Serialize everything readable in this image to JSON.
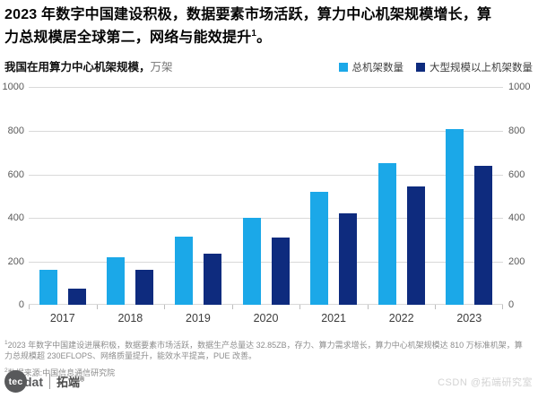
{
  "title": {
    "line1": "2023 年数字中国建设积极，数据要素市场活跃，算力中心机架规模增长，算",
    "line2": "力总规模居全球第二，网络与能效提升",
    "superscript": "1",
    "period": "。"
  },
  "subtitle": {
    "label": "我国在用算力中心机架规模，",
    "unit": "万架"
  },
  "legend": [
    {
      "label": "总机架数量",
      "color": "#1BA8E8"
    },
    {
      "label": "大型规模以上机架数量",
      "color": "#0E2B7E"
    }
  ],
  "chart_data": {
    "type": "bar",
    "title": "我国在用算力中心机架规模",
    "unit": "万架",
    "categories": [
      "2017",
      "2018",
      "2019",
      "2020",
      "2021",
      "2022",
      "2023"
    ],
    "series": [
      {
        "name": "总机架数量",
        "color": "#1BA8E8",
        "values": [
          160,
          220,
          315,
          400,
          520,
          650,
          810
        ]
      },
      {
        "name": "大型规模以上机架数量",
        "color": "#0E2B7E",
        "values": [
          75,
          160,
          235,
          310,
          420,
          545,
          640
        ]
      }
    ],
    "ylim": [
      0,
      1000
    ],
    "yticks": [
      0,
      200,
      400,
      600,
      800,
      1000
    ],
    "grid": true,
    "dual_y_axis_labels": true,
    "legend_position": "top-right"
  },
  "footnotes": {
    "note1_sup": "1",
    "note1": "2023 年数字中国建设进展积极，数据要素市场活跃，数据生产总量达 32.85ZB，存力、算力需求增长，算力中心机架规模达 810 万标准机架，算力总规模超 230EFLOPS、网络质量提升，能效水平提高，PUE 改善。",
    "note2_sup": "2",
    "note2": "数据来源:中国信息通信研究院"
  },
  "brand": {
    "circle_text": "tec",
    "wordmark": "dat",
    "cjk_name": "拓端",
    "registered": "®"
  },
  "watermark": "CSDN @拓端研究室"
}
